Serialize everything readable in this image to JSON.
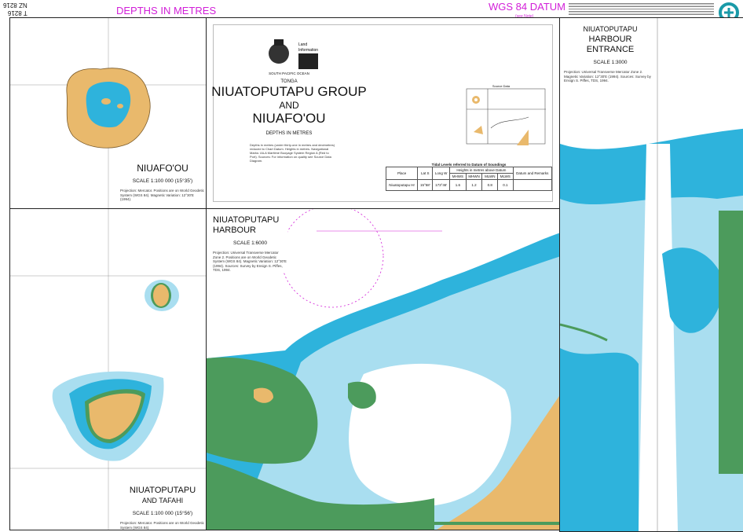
{
  "header": {
    "chart_number_top": "NZ 8216",
    "chart_number_bottom": "T 8216",
    "depths_label": "DEPTHS IN METRES",
    "datum_label": "WGS 84 DATUM",
    "datum_note": "(see Note)"
  },
  "title_panel": {
    "region": "SOUTH PACIFIC OCEAN",
    "country": "TONGA",
    "title_line1": "NIUATOPUTAPU GROUP",
    "title_line2": "AND",
    "title_line3": "NIUAFO'OU",
    "depths": "DEPTHS IN METRES",
    "logo_text": "Toitū Te Whenua Land Information New Zealand",
    "source_data_label": "Source Data",
    "tidal": {
      "title": "Tidal Levels referred to Datum of Soundings",
      "heights_header": "Heights in metres above Datum",
      "columns": [
        "Place",
        "Lat S",
        "Long W",
        "MHWS",
        "MHWN",
        "MLWN",
        "MLWS",
        "Datum and Remarks"
      ],
      "rows": [
        [
          "Niuatoputapu Hr",
          "15°58'",
          "173°46'",
          "1.6",
          "1.2",
          "0.8",
          "0.1",
          ""
        ]
      ]
    }
  },
  "panels": {
    "niuafoou": {
      "title": "NIUAFO'OU",
      "scale": "SCALE 1:100 000 (15°35')"
    },
    "tafahi": {
      "title_line1": "NIUATOPUTAPU",
      "title_line2": "AND TAFAHI",
      "scale": "SCALE 1:100 000 (15°56')"
    },
    "harbour": {
      "title_line1": "NIUATOPUTAPU",
      "title_line2": "HARBOUR",
      "scale": "SCALE 1:6000"
    },
    "entrance": {
      "title_line1": "NIUATOPUTAPU",
      "title_line2": "HARBOUR ENTRANCE",
      "scale": "SCALE 1:3000"
    }
  },
  "icons": {
    "zoom": "magnifier-plus-icon"
  },
  "colors": {
    "land": "#e9b96c",
    "shallow": "#2eb3dc",
    "medium": "#a9def0",
    "drying": "#4c9b5c",
    "accent": "#d21fd8",
    "zoom": "#1a9aa8"
  }
}
